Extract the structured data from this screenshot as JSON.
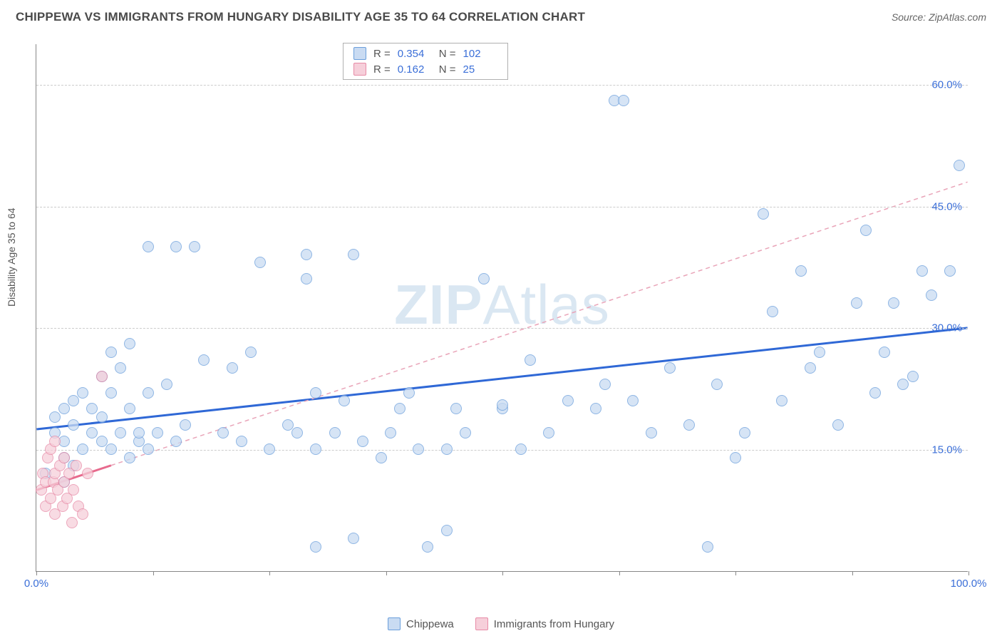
{
  "title": "CHIPPEWA VS IMMIGRANTS FROM HUNGARY DISABILITY AGE 35 TO 64 CORRELATION CHART",
  "source_label": "Source: ZipAtlas.com",
  "ylabel": "Disability Age 35 to 64",
  "watermark_prefix": "ZIP",
  "watermark_suffix": "Atlas",
  "chart": {
    "type": "scatter",
    "background_color": "#ffffff",
    "grid_color": "#cccccc",
    "axis_color": "#888888",
    "xlim": [
      0,
      100
    ],
    "ylim": [
      0,
      65
    ],
    "yticks": [
      15,
      30,
      45,
      60
    ],
    "ytick_labels": [
      "15.0%",
      "30.0%",
      "45.0%",
      "60.0%"
    ],
    "xticks": [
      0,
      12.5,
      25,
      37.5,
      50,
      62.5,
      75,
      87.5,
      100
    ],
    "xtick_labels_start": "0.0%",
    "xtick_labels_end": "100.0%",
    "marker_radius": 8,
    "marker_stroke_width": 1.2,
    "series": [
      {
        "name": "Chippewa",
        "fill": "#c9dbf2",
        "stroke": "#6a9edb",
        "fill_opacity": 0.75,
        "trend_color": "#2f68d6",
        "trend_dash_color": "#2f68d6",
        "R": "0.354",
        "N": "102",
        "regression": {
          "x1": 0,
          "y1": 17.5,
          "x2": 100,
          "y2": 30,
          "solid_until_x": 100
        },
        "points": [
          [
            1,
            12
          ],
          [
            2,
            17
          ],
          [
            2,
            19
          ],
          [
            3,
            11
          ],
          [
            3,
            14
          ],
          [
            3,
            16
          ],
          [
            3,
            20
          ],
          [
            4,
            13
          ],
          [
            4,
            18
          ],
          [
            4,
            21
          ],
          [
            5,
            15
          ],
          [
            5,
            22
          ],
          [
            6,
            17
          ],
          [
            6,
            20
          ],
          [
            7,
            16
          ],
          [
            7,
            19
          ],
          [
            7,
            24
          ],
          [
            8,
            15
          ],
          [
            8,
            22
          ],
          [
            8,
            27
          ],
          [
            9,
            17
          ],
          [
            9,
            25
          ],
          [
            10,
            14
          ],
          [
            10,
            20
          ],
          [
            10,
            28
          ],
          [
            11,
            16
          ],
          [
            11,
            17
          ],
          [
            12,
            15
          ],
          [
            12,
            22
          ],
          [
            12,
            40
          ],
          [
            13,
            17
          ],
          [
            14,
            23
          ],
          [
            15,
            16
          ],
          [
            15,
            40
          ],
          [
            16,
            18
          ],
          [
            17,
            40
          ],
          [
            18,
            26
          ],
          [
            20,
            17
          ],
          [
            21,
            25
          ],
          [
            22,
            16
          ],
          [
            23,
            27
          ],
          [
            24,
            38
          ],
          [
            25,
            15
          ],
          [
            27,
            18
          ],
          [
            28,
            17
          ],
          [
            29,
            36
          ],
          [
            29,
            39
          ],
          [
            30,
            22
          ],
          [
            30,
            3
          ],
          [
            30,
            15
          ],
          [
            32,
            17
          ],
          [
            33,
            21
          ],
          [
            34,
            4
          ],
          [
            34,
            39
          ],
          [
            35,
            16
          ],
          [
            37,
            14
          ],
          [
            38,
            17
          ],
          [
            39,
            20
          ],
          [
            40,
            22
          ],
          [
            41,
            15
          ],
          [
            42,
            3
          ],
          [
            44,
            5
          ],
          [
            44,
            15
          ],
          [
            45,
            20
          ],
          [
            46,
            17
          ],
          [
            48,
            36
          ],
          [
            50,
            20
          ],
          [
            50,
            20.5
          ],
          [
            52,
            15
          ],
          [
            53,
            26
          ],
          [
            55,
            17
          ],
          [
            57,
            21
          ],
          [
            60,
            20
          ],
          [
            61,
            23
          ],
          [
            62,
            58
          ],
          [
            63,
            58
          ],
          [
            64,
            21
          ],
          [
            66,
            17
          ],
          [
            68,
            25
          ],
          [
            70,
            18
          ],
          [
            72,
            3
          ],
          [
            73,
            23
          ],
          [
            75,
            14
          ],
          [
            76,
            17
          ],
          [
            78,
            44
          ],
          [
            79,
            32
          ],
          [
            80,
            21
          ],
          [
            82,
            37
          ],
          [
            83,
            25
          ],
          [
            84,
            27
          ],
          [
            86,
            18
          ],
          [
            88,
            33
          ],
          [
            89,
            42
          ],
          [
            90,
            22
          ],
          [
            91,
            27
          ],
          [
            92,
            33
          ],
          [
            93,
            23
          ],
          [
            94,
            24
          ],
          [
            95,
            37
          ],
          [
            96,
            34
          ],
          [
            98,
            37
          ],
          [
            99,
            50
          ]
        ]
      },
      {
        "name": "Immigrants from Hungary",
        "fill": "#f6cfda",
        "stroke": "#e78aa6",
        "fill_opacity": 0.75,
        "trend_color": "#e76a8d",
        "trend_dash_color": "#e9a4b8",
        "R": "0.162",
        "N": "25",
        "regression": {
          "x1": 0,
          "y1": 10,
          "x2": 100,
          "y2": 48,
          "solid_until_x": 8
        },
        "points": [
          [
            0.5,
            10
          ],
          [
            0.7,
            12
          ],
          [
            1,
            8
          ],
          [
            1,
            11
          ],
          [
            1.2,
            14
          ],
          [
            1.5,
            9
          ],
          [
            1.5,
            15
          ],
          [
            1.8,
            11
          ],
          [
            2,
            7
          ],
          [
            2,
            12
          ],
          [
            2,
            16
          ],
          [
            2.3,
            10
          ],
          [
            2.5,
            13
          ],
          [
            2.8,
            8
          ],
          [
            3,
            11
          ],
          [
            3,
            14
          ],
          [
            3.3,
            9
          ],
          [
            3.5,
            12
          ],
          [
            3.8,
            6
          ],
          [
            4,
            10
          ],
          [
            4.3,
            13
          ],
          [
            4.5,
            8
          ],
          [
            5,
            7
          ],
          [
            5.5,
            12
          ],
          [
            7,
            24
          ]
        ]
      }
    ]
  },
  "bottom_legend": {
    "series1_label": "Chippewa",
    "series2_label": "Immigrants from Hungary"
  }
}
